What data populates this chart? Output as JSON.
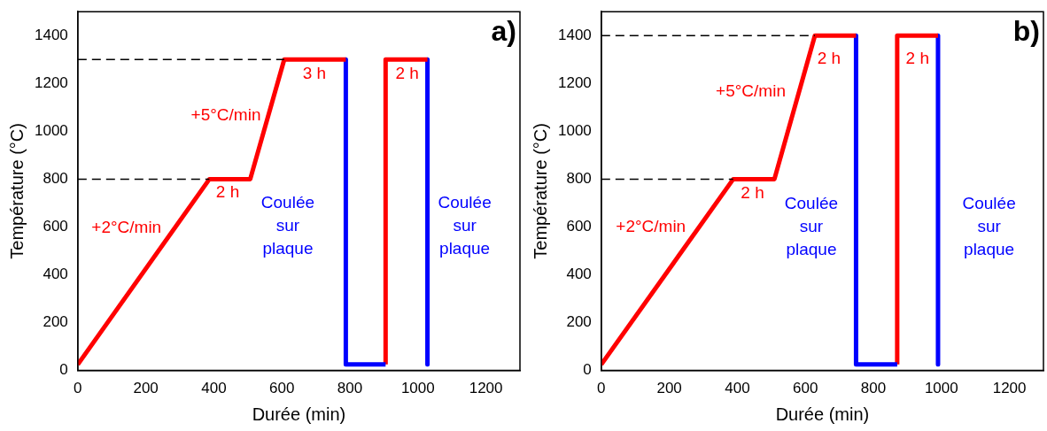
{
  "chart_data": [
    {
      "type": "line",
      "xlabel": "Durée (min)",
      "ylabel": "Température (°C)",
      "xlim": [
        0,
        1300
      ],
      "ylim": [
        0,
        1500
      ],
      "xticks": [
        0,
        200,
        400,
        600,
        800,
        1000,
        1200
      ],
      "yticks": [
        0,
        200,
        400,
        600,
        800,
        1000,
        1200,
        1400
      ],
      "grid": false,
      "legend": false,
      "marker": "none",
      "series": [
        {
          "color": "#000000",
          "line_style": "dashed",
          "x": [
            0,
            387
          ],
          "values": [
            800,
            800
          ]
        },
        {
          "color": "#000000",
          "line_style": "dashed",
          "x": [
            0,
            607
          ],
          "values": [
            1300,
            1300
          ]
        },
        {
          "color": "#ff0000",
          "x": [
            0,
            387,
            507,
            607,
            788
          ],
          "values": [
            25,
            800,
            800,
            1300,
            1300
          ]
        },
        {
          "color": "#0000ff",
          "x": [
            788,
            788,
            905
          ],
          "values": [
            1300,
            25,
            25
          ]
        },
        {
          "color": "#ff0000",
          "x": [
            905,
            905,
            1028
          ],
          "values": [
            25,
            1300,
            1300
          ]
        },
        {
          "color": "#0000ff",
          "x": [
            1028,
            1028
          ],
          "values": [
            1300,
            25
          ]
        }
      ],
      "annotations": [
        "a)",
        "+2°C/min",
        "2 h",
        "+5°C/min",
        "3 h",
        "2 h",
        "Coulée\nsur\nplaque",
        "Coulée\nsur\nplaque"
      ]
    },
    {
      "type": "line",
      "xlabel": "Durée (min)",
      "ylabel": "Température (°C)",
      "xlim": [
        0,
        1300
      ],
      "ylim": [
        0,
        1500
      ],
      "xticks": [
        0,
        200,
        400,
        600,
        800,
        1000,
        1200
      ],
      "yticks": [
        0,
        200,
        400,
        600,
        800,
        1000,
        1200,
        1400
      ],
      "grid": false,
      "legend": false,
      "marker": "none",
      "series": [
        {
          "color": "#000000",
          "line_style": "dashed",
          "x": [
            0,
            388
          ],
          "values": [
            800,
            800
          ]
        },
        {
          "color": "#000000",
          "line_style": "dashed",
          "x": [
            0,
            628
          ],
          "values": [
            1400,
            1400
          ]
        },
        {
          "color": "#ff0000",
          "x": [
            0,
            388,
            509,
            628,
            749
          ],
          "values": [
            25,
            800,
            800,
            1400,
            1400
          ]
        },
        {
          "color": "#0000ff",
          "x": [
            749,
            749,
            870
          ],
          "values": [
            1400,
            25,
            25
          ]
        },
        {
          "color": "#ff0000",
          "x": [
            870,
            870,
            990
          ],
          "values": [
            25,
            1400,
            1400
          ]
        },
        {
          "color": "#0000ff",
          "x": [
            990,
            990
          ],
          "values": [
            1400,
            25
          ]
        }
      ],
      "annotations": [
        "b)",
        "+2°C/min",
        "2 h",
        "+5°C/min",
        "2 h",
        "2 h",
        "Coulée\nsur\nplaque",
        "Coulée\nsur\nplaque"
      ]
    }
  ]
}
